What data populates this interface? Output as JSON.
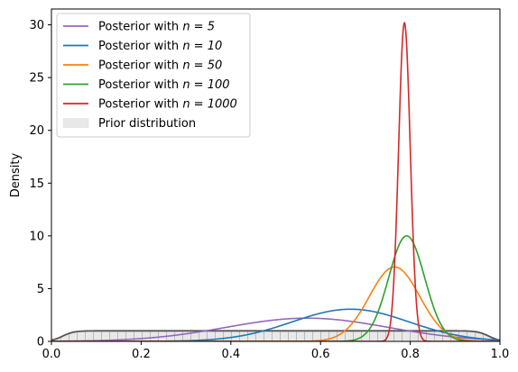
{
  "chart_data": {
    "type": "line",
    "xlabel": "",
    "ylabel": "Density",
    "xlim": [
      0.0,
      1.0
    ],
    "ylim": [
      0,
      31.5
    ],
    "x_ticks": [
      0.0,
      0.2,
      0.4,
      0.6,
      0.8,
      1.0
    ],
    "x_tick_labels": [
      "0.0",
      "0.2",
      "0.4",
      "0.6",
      "0.8",
      "1.0"
    ],
    "y_ticks": [
      0,
      5,
      10,
      15,
      20,
      25,
      30
    ],
    "y_tick_labels": [
      "0",
      "5",
      "10",
      "15",
      "20",
      "25",
      "30"
    ],
    "grid": false,
    "legend_position": "top-left",
    "series": [
      {
        "name": "Posterior with n = 5",
        "name_prefix": "Posterior with ",
        "name_math": "n = 5",
        "color": "#9467bd",
        "mode": 0.57,
        "sd": 0.18,
        "peak": 2.2
      },
      {
        "name": "Posterior with n = 10",
        "name_prefix": "Posterior with ",
        "name_math": "n = 10",
        "color": "#1f77b4",
        "mode": 0.667,
        "sd": 0.13,
        "peak": 3.05
      },
      {
        "name": "Posterior with n = 50",
        "name_prefix": "Posterior with ",
        "name_math": "n = 50",
        "color": "#ff7f0e",
        "mode": 0.765,
        "sd": 0.056,
        "peak": 7.05
      },
      {
        "name": "Posterior with n = 100",
        "name_prefix": "Posterior with ",
        "name_math": "n = 100",
        "color": "#2ca02c",
        "mode": 0.792,
        "sd": 0.04,
        "peak": 10.0
      },
      {
        "name": "Posterior with n = 1000",
        "name_prefix": "Posterior with ",
        "name_math": "n = 1000",
        "color": "#d62728",
        "mode": 0.787,
        "sd": 0.013,
        "peak": 30.2
      }
    ],
    "prior": {
      "name": "Prior distribution",
      "type": "area",
      "plateau": 1.0,
      "edge_rise_width": 0.05,
      "fill_color": "#e8e8e8",
      "line_color": "#555555",
      "hatch": "vertical"
    }
  }
}
